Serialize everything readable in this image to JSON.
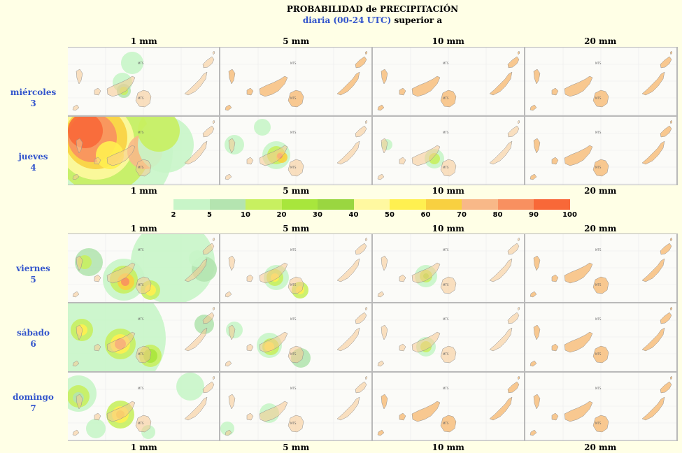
{
  "header": {
    "title": "PROBABILIDAD de PRECIPITACIÓN",
    "subtitle_blue": "diaria (00-24 UTC)",
    "subtitle_rest": " superior a"
  },
  "thresholds": [
    "1 mm",
    "5 mm",
    "10 mm",
    "20 mm"
  ],
  "days": [
    {
      "name": "miércoles",
      "num": "3"
    },
    {
      "name": "jueves",
      "num": "4"
    },
    {
      "name": "viernes",
      "num": "5"
    },
    {
      "name": "sábado",
      "num": "6"
    },
    {
      "name": "domingo",
      "num": "7"
    }
  ],
  "legend": {
    "labels": [
      "2",
      "5",
      "10",
      "20",
      "30",
      "40",
      "50",
      "60",
      "70",
      "80",
      "90",
      "100"
    ],
    "colors": [
      "#c8f5c8",
      "#b4e4b0",
      "#c8f060",
      "#a8e63c",
      "#9ad640",
      "#fff8a0",
      "#fff050",
      "#f8d040",
      "#f8b888",
      "#f89060",
      "#f86838"
    ]
  },
  "colors": {
    "background": "#ffffe6",
    "day_label": "#3355cc",
    "island": "#f8c890",
    "island_outline": "#909090"
  },
  "map_labels": [
    "MTS",
    "MTS"
  ]
}
